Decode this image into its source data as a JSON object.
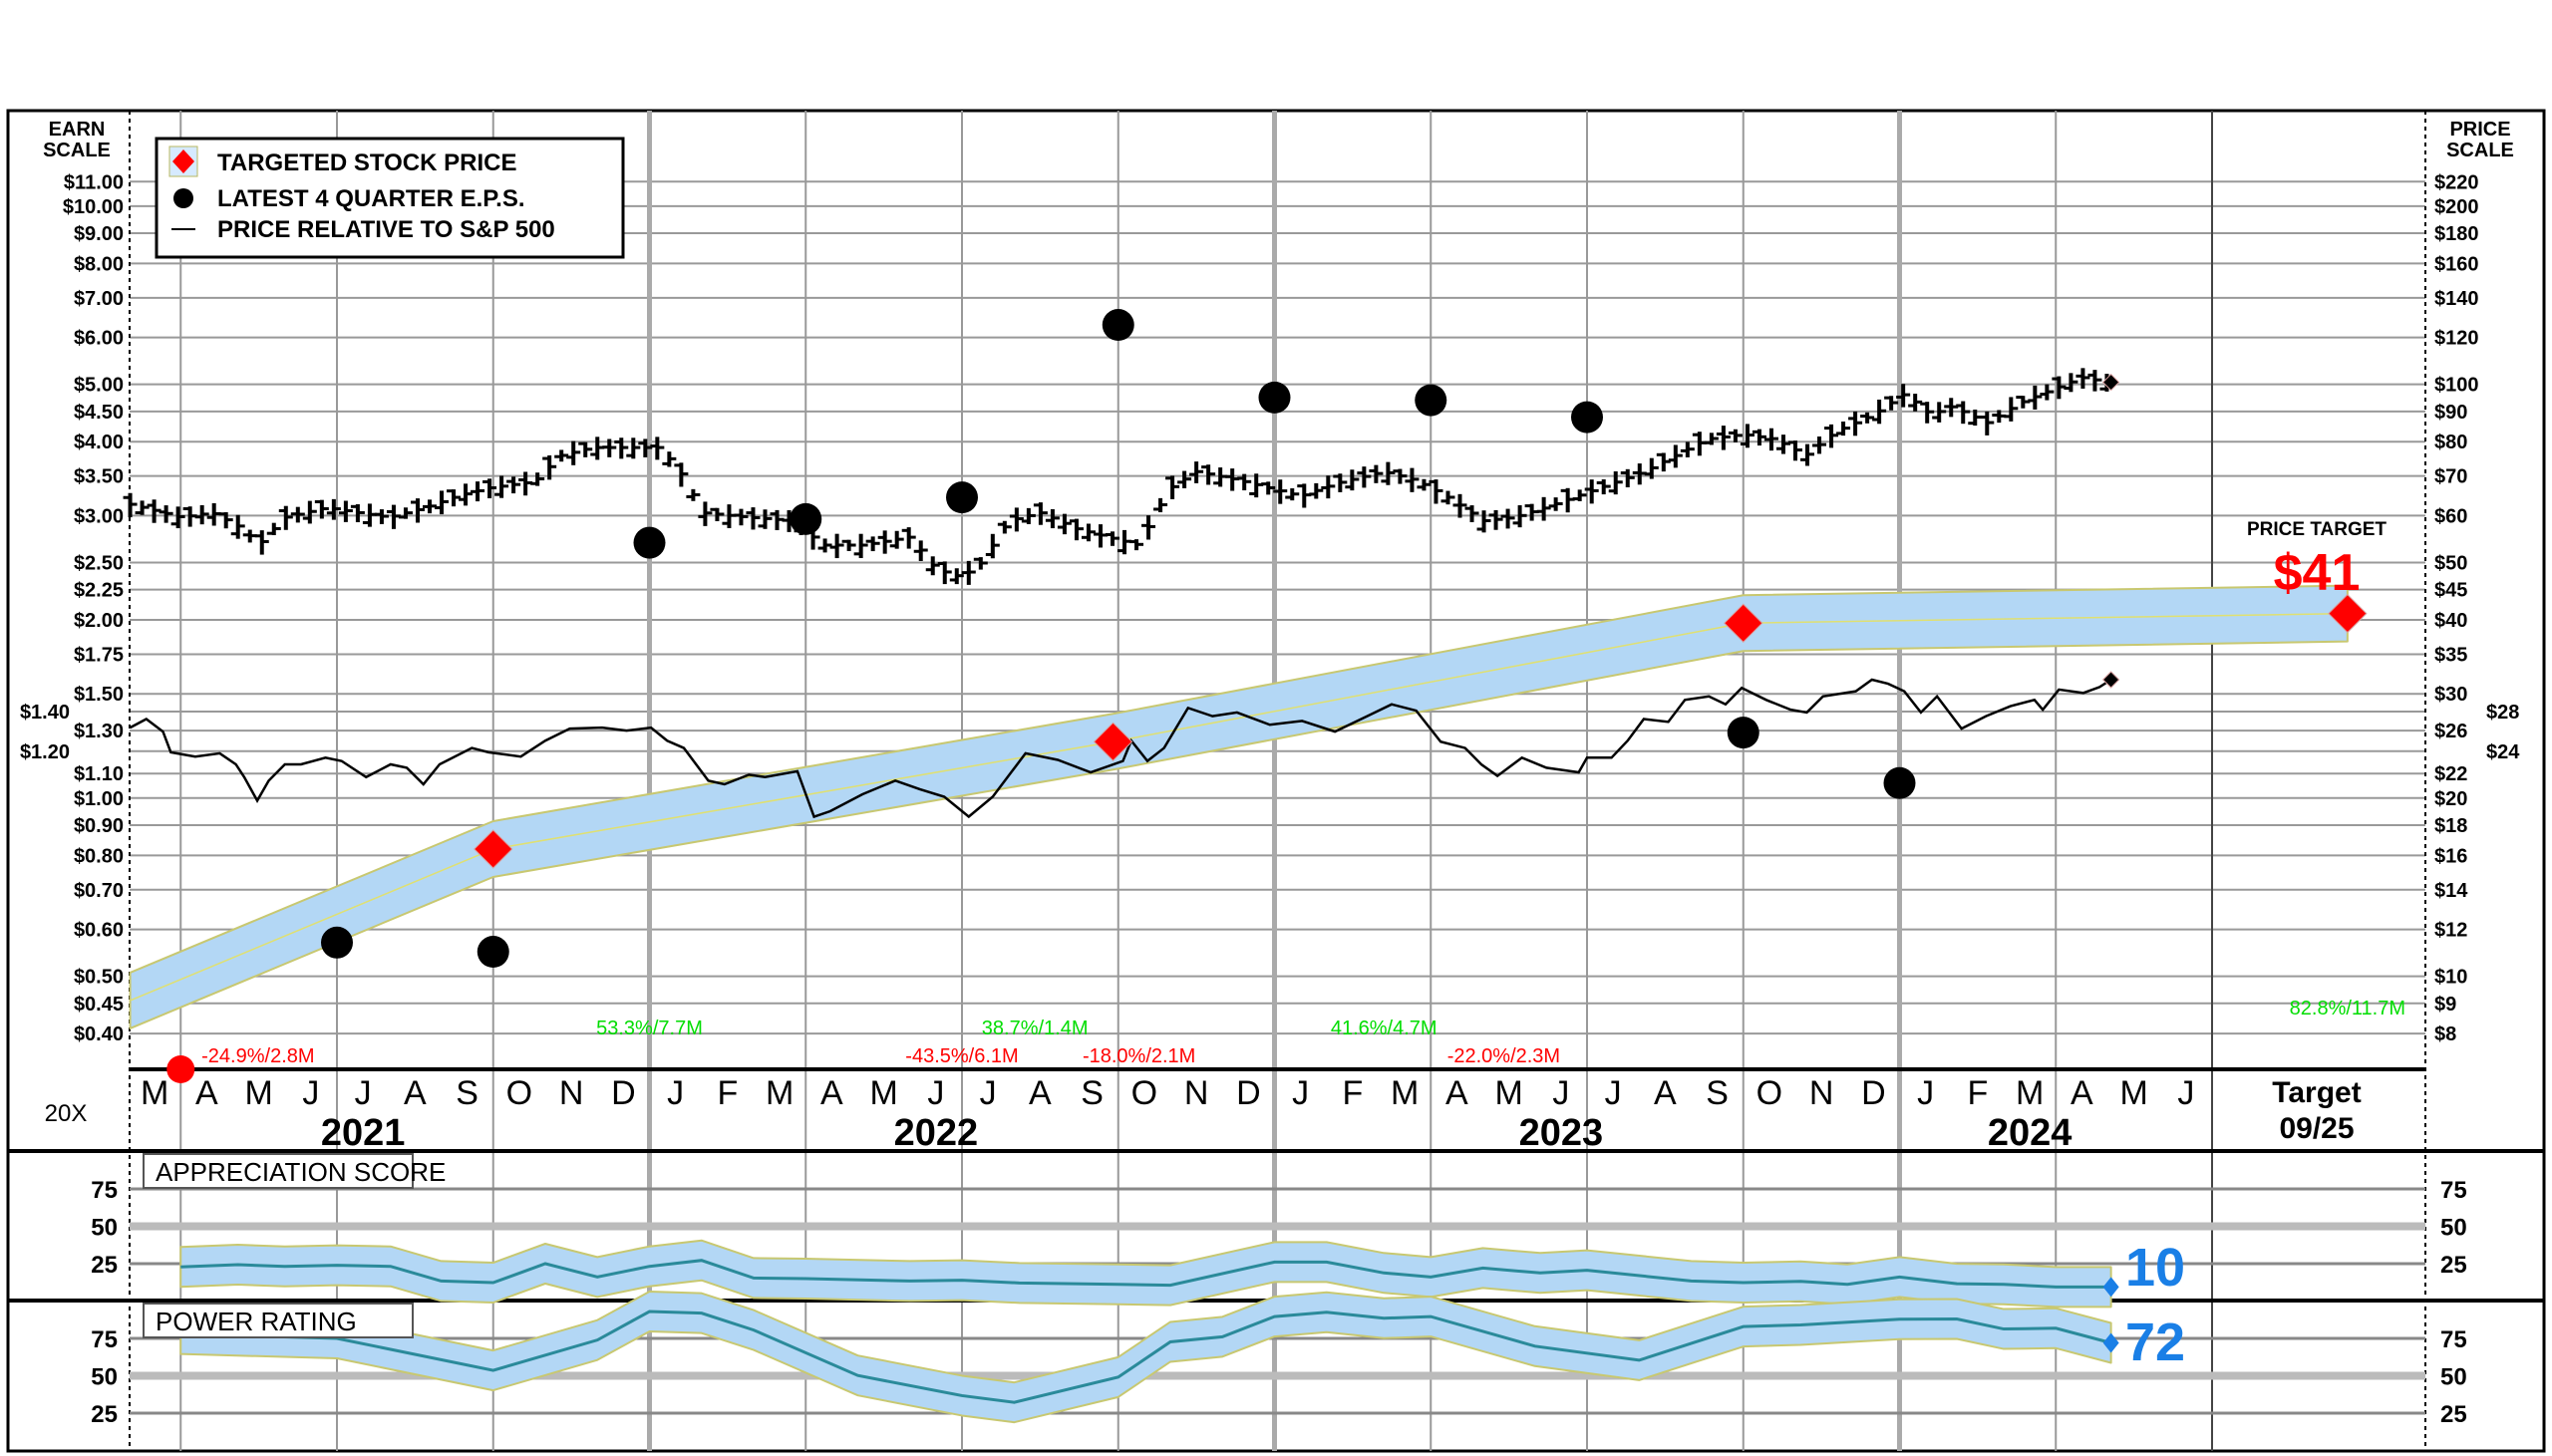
{
  "chart_data": {
    "type": "line",
    "title": "",
    "multiplier_label": "20X",
    "left_axis": {
      "title_line1": "EARN",
      "title_line2": "SCALE",
      "ticks": [
        "$11.00",
        "$10.00",
        "$9.00",
        "$8.00",
        "$7.00",
        "$6.00",
        "$5.00",
        "$4.50",
        "$4.00",
        "$3.50",
        "$3.00",
        "$2.50",
        "$2.25",
        "$2.00",
        "$1.75",
        "$1.50",
        "$1.40",
        "$1.30",
        "$1.20",
        "$1.10",
        "$1.00",
        "$0.90",
        "$0.80",
        "$0.70",
        "$0.60",
        "$0.50",
        "$0.45",
        "$0.40"
      ]
    },
    "right_axis": {
      "title_line1": "PRICE",
      "title_line2": "SCALE",
      "ticks": [
        "$220",
        "$200",
        "$180",
        "$160",
        "$140",
        "$120",
        "$100",
        "$90",
        "$80",
        "$70",
        "$60",
        "$50",
        "$45",
        "$40",
        "$35",
        "$30",
        "$28",
        "$26",
        "$24",
        "$22",
        "$20",
        "$18",
        "$16",
        "$14",
        "$12",
        "$10",
        "$9",
        "$8"
      ],
      "tick_values": [
        220,
        200,
        180,
        160,
        140,
        120,
        100,
        90,
        80,
        70,
        60,
        50,
        45,
        40,
        35,
        30,
        28,
        26,
        24,
        22,
        20,
        18,
        16,
        14,
        12,
        10,
        9,
        8
      ]
    },
    "scale": "log",
    "earn_to_price_multiplier": 20,
    "months": [
      "M",
      "A",
      "M",
      "J",
      "J",
      "A",
      "S",
      "O",
      "N",
      "D",
      "J",
      "F",
      "M",
      "A",
      "M",
      "J",
      "J",
      "A",
      "S",
      "O",
      "N",
      "D",
      "J",
      "F",
      "M",
      "A",
      "M",
      "J",
      "J",
      "A",
      "S",
      "O",
      "N",
      "D",
      "J",
      "F",
      "M",
      "A",
      "M",
      "J"
    ],
    "years": [
      {
        "label": "2021",
        "center_month": 4.5
      },
      {
        "label": "2022",
        "center_month": 15.5
      },
      {
        "label": "2023",
        "center_month": 27.5
      },
      {
        "label": "2024",
        "center_month": 36.5
      }
    ],
    "target_column": {
      "label": "Target",
      "date": "09/25"
    },
    "legend": {
      "placement": "top-left",
      "items": [
        {
          "label": "TARGETED STOCK PRICE",
          "marker": "red-diamond"
        },
        {
          "label": "LATEST 4 QUARTER E.P.S.",
          "marker": "black-circle"
        },
        {
          "label": "PRICE RELATIVE TO S&P 500",
          "marker": "line"
        }
      ]
    },
    "price_closes": [
      [
        0.03,
        62.7
      ],
      [
        1,
        59.6
      ],
      [
        1.6,
        60.7
      ],
      [
        2.2,
        57
      ],
      [
        2.5,
        53.5
      ],
      [
        3,
        59.6
      ],
      [
        3.8,
        61.9
      ],
      [
        4.4,
        60.7
      ],
      [
        5,
        59.6
      ],
      [
        5.7,
        61.9
      ],
      [
        6.3,
        64.7
      ],
      [
        6.9,
        66.8
      ],
      [
        7.8,
        68.5
      ],
      [
        8.3,
        75.8
      ],
      [
        8.9,
        78.2
      ],
      [
        9.7,
        78.2
      ],
      [
        10.2,
        78.2
      ],
      [
        10.7,
        68.9
      ],
      [
        11,
        60.7
      ],
      [
        11.9,
        59.6
      ],
      [
        12.8,
        58.8
      ],
      [
        13.3,
        53.5
      ],
      [
        14.1,
        53.5
      ],
      [
        15,
        55.2
      ],
      [
        15.5,
        48.7
      ],
      [
        16,
        47.2
      ],
      [
        16.4,
        50.2
      ],
      [
        16.9,
        58.8
      ],
      [
        17.5,
        60.7
      ],
      [
        18.2,
        57
      ],
      [
        18.8,
        55.2
      ],
      [
        19.4,
        53.5
      ],
      [
        20,
        66.8
      ],
      [
        20.5,
        71.2
      ],
      [
        21.3,
        68.9
      ],
      [
        21.9,
        66.8
      ],
      [
        22.5,
        64.7
      ],
      [
        23.2,
        68.1
      ],
      [
        24.1,
        71.2
      ],
      [
        24.7,
        68.9
      ],
      [
        25.3,
        64.7
      ],
      [
        26,
        58.8
      ],
      [
        26.6,
        59.6
      ],
      [
        27.2,
        61.9
      ],
      [
        27.8,
        64.7
      ],
      [
        28.5,
        68.1
      ],
      [
        29.1,
        71.2
      ],
      [
        29.7,
        75.8
      ],
      [
        30.3,
        80.8
      ],
      [
        31,
        82.3
      ],
      [
        31.6,
        80.8
      ],
      [
        32.2,
        75.8
      ],
      [
        32.8,
        83.4
      ],
      [
        33.5,
        88.8
      ],
      [
        34.1,
        96.4
      ],
      [
        34.6,
        88.8
      ],
      [
        35,
        91.7
      ],
      [
        35.7,
        86
      ],
      [
        36.3,
        92.9
      ],
      [
        36.9,
        97.7
      ],
      [
        37.5,
        102.7
      ],
      [
        38,
        100.8
      ]
    ],
    "relative_to_sp500": [
      [
        0.03,
        26.3
      ],
      [
        0.34,
        27.2
      ],
      [
        0.66,
        25.9
      ],
      [
        0.81,
        23.9
      ],
      [
        1.28,
        23.5
      ],
      [
        1.75,
        23.8
      ],
      [
        2.06,
        22.8
      ],
      [
        2.22,
        21.7
      ],
      [
        2.47,
        19.8
      ],
      [
        2.69,
        21.4
      ],
      [
        3,
        22.8
      ],
      [
        3.31,
        22.8
      ],
      [
        3.78,
        23.4
      ],
      [
        4.09,
        23.1
      ],
      [
        4.56,
        21.7
      ],
      [
        5.03,
        22.8
      ],
      [
        5.34,
        22.5
      ],
      [
        5.66,
        21.1
      ],
      [
        5.97,
        22.8
      ],
      [
        6.59,
        24.3
      ],
      [
        6.91,
        23.9
      ],
      [
        7.53,
        23.5
      ],
      [
        8,
        25
      ],
      [
        8.47,
        26.2
      ],
      [
        9.09,
        26.3
      ],
      [
        9.56,
        26
      ],
      [
        10.03,
        26.3
      ],
      [
        10.34,
        25
      ],
      [
        10.66,
        24.3
      ],
      [
        11.13,
        21.4
      ],
      [
        11.44,
        21.1
      ],
      [
        11.91,
        21.9
      ],
      [
        12.22,
        21.7
      ],
      [
        12.84,
        22.2
      ],
      [
        13.16,
        18.6
      ],
      [
        13.47,
        19
      ],
      [
        14.09,
        20.3
      ],
      [
        14.72,
        21.4
      ],
      [
        15.19,
        20.7
      ],
      [
        15.66,
        20.1
      ],
      [
        16.13,
        18.6
      ],
      [
        16.59,
        20.1
      ],
      [
        17.22,
        23.8
      ],
      [
        17.84,
        23.2
      ],
      [
        18.47,
        22.1
      ],
      [
        19.09,
        23.1
      ],
      [
        19.25,
        25
      ],
      [
        19.56,
        23.1
      ],
      [
        19.88,
        24.3
      ],
      [
        20.34,
        28.4
      ],
      [
        20.81,
        27.5
      ],
      [
        21.28,
        27.9
      ],
      [
        21.91,
        26.6
      ],
      [
        22.53,
        27
      ],
      [
        23.16,
        25.9
      ],
      [
        23.78,
        27.5
      ],
      [
        24.25,
        28.8
      ],
      [
        24.72,
        28.1
      ],
      [
        25.19,
        24.9
      ],
      [
        25.66,
        24.3
      ],
      [
        25.97,
        22.8
      ],
      [
        26.28,
        21.8
      ],
      [
        26.75,
        23.4
      ],
      [
        27.22,
        22.5
      ],
      [
        27.84,
        22.1
      ],
      [
        28,
        23.4
      ],
      [
        28.47,
        23.4
      ],
      [
        28.78,
        25
      ],
      [
        29.09,
        27.2
      ],
      [
        29.56,
        26.9
      ],
      [
        29.88,
        29.3
      ],
      [
        30.34,
        29.7
      ],
      [
        30.66,
        28.8
      ],
      [
        30.97,
        30.7
      ],
      [
        31.44,
        29.3
      ],
      [
        31.91,
        28.2
      ],
      [
        32.22,
        27.9
      ],
      [
        32.53,
        29.7
      ],
      [
        33.16,
        30.3
      ],
      [
        33.47,
        31.7
      ],
      [
        33.78,
        31.2
      ],
      [
        34.09,
        30.3
      ],
      [
        34.41,
        27.9
      ],
      [
        34.72,
        29.7
      ],
      [
        35.19,
        26.2
      ],
      [
        35.66,
        27.5
      ],
      [
        36.13,
        28.6
      ],
      [
        36.59,
        29.3
      ],
      [
        36.75,
        28.2
      ],
      [
        37.06,
        30.5
      ],
      [
        37.53,
        30.1
      ],
      [
        37.84,
        30.8
      ],
      [
        38.06,
        31.7
      ]
    ],
    "eps": [
      [
        4,
        0.57
      ],
      [
        7,
        0.55
      ],
      [
        10,
        2.7
      ],
      [
        13,
        2.96
      ],
      [
        16,
        3.22
      ],
      [
        19,
        6.3
      ],
      [
        22,
        4.75
      ],
      [
        25,
        4.7
      ],
      [
        28,
        4.4
      ],
      [
        31,
        1.29
      ],
      [
        34,
        1.06
      ]
    ],
    "targeted_price_band": [
      [
        0.03,
        9.1
      ],
      [
        7,
        16.4
      ],
      [
        18.9,
        24.9
      ],
      [
        31,
        39.5
      ],
      [
        42.6,
        41
      ]
    ],
    "targeted_price_diamonds": [
      [
        7,
        16.4
      ],
      [
        18.9,
        24.9
      ],
      [
        31,
        39.5
      ]
    ],
    "price_target": {
      "label": "PRICE TARGET",
      "value_label": "$41",
      "value": 41
    },
    "latest_price": 100.8,
    "latest_relative": 31.7,
    "start_marker": {
      "month": 1,
      "value": 7.6
    },
    "volume_annotations": [
      {
        "text": "-24.9%/2.8M",
        "month": 1.4,
        "color": "#ff0000",
        "row": "low"
      },
      {
        "text": "53.3%/7.7M",
        "month": 10,
        "color": "#00dd00",
        "row": "high"
      },
      {
        "text": "-43.5%/6.1M",
        "month": 16,
        "color": "#ff0000",
        "row": "low"
      },
      {
        "text": "38.7%/1.4M",
        "month": 17.4,
        "color": "#00dd00",
        "row": "high"
      },
      {
        "text": "-18.0%/2.1M",
        "month": 19.4,
        "color": "#ff0000",
        "row": "low"
      },
      {
        "text": "41.6%/4.7M",
        "month": 24.1,
        "color": "#00dd00",
        "row": "high"
      },
      {
        "text": "-22.0%/2.3M",
        "month": 26.4,
        "color": "#ff0000",
        "row": "low"
      },
      {
        "text": "82.8%/11.7M",
        "month": 42.6,
        "color": "#00dd00",
        "row": "top"
      }
    ],
    "appreciation_score": {
      "label": "APPRECIATION SCORE",
      "ticks": [
        "75",
        "50",
        "25"
      ],
      "tick_values": [
        75,
        50,
        25
      ],
      "final_label": "10",
      "points": [
        [
          1,
          22.8
        ],
        [
          2.1,
          24.3
        ],
        [
          3,
          23.2
        ],
        [
          4,
          23.9
        ],
        [
          5.03,
          23.2
        ],
        [
          6,
          13.4
        ],
        [
          7,
          12.3
        ],
        [
          8,
          25
        ],
        [
          9,
          16.1
        ],
        [
          10,
          23.2
        ],
        [
          11,
          27.2
        ],
        [
          12,
          15.4
        ],
        [
          13,
          15
        ],
        [
          15,
          13.4
        ],
        [
          16,
          13.9
        ],
        [
          17.1,
          12.1
        ],
        [
          19,
          11.2
        ],
        [
          20,
          10.6
        ],
        [
          22,
          26.1
        ],
        [
          23,
          26.1
        ],
        [
          24.1,
          18.8
        ],
        [
          25,
          16.1
        ],
        [
          26,
          22.1
        ],
        [
          27.1,
          18.8
        ],
        [
          28,
          20.6
        ],
        [
          30,
          13.4
        ],
        [
          31,
          12.3
        ],
        [
          32.1,
          13.2
        ],
        [
          33,
          11.2
        ],
        [
          34,
          16.1
        ],
        [
          35.1,
          11.6
        ],
        [
          36,
          11.2
        ],
        [
          37,
          9.4
        ],
        [
          38.06,
          9.4
        ]
      ]
    },
    "power_rating": {
      "label": "POWER RATING",
      "ticks": [
        "75",
        "50",
        "25"
      ],
      "tick_values": [
        75,
        50,
        25
      ],
      "final_label": "72",
      "points": [
        [
          1,
          77.9
        ],
        [
          4,
          75
        ],
        [
          7,
          53.6
        ],
        [
          9,
          73.9
        ],
        [
          10,
          93
        ],
        [
          11,
          91.9
        ],
        [
          12,
          80.6
        ],
        [
          14,
          50.2
        ],
        [
          16,
          36.7
        ],
        [
          17,
          32.2
        ],
        [
          19,
          49.1
        ],
        [
          20,
          72.7
        ],
        [
          21,
          76.1
        ],
        [
          22,
          89.6
        ],
        [
          23,
          92.5
        ],
        [
          24.1,
          88.5
        ],
        [
          25,
          89.6
        ],
        [
          27,
          69.8
        ],
        [
          29,
          60.4
        ],
        [
          31,
          82.9
        ],
        [
          32.1,
          84
        ],
        [
          34,
          87.8
        ],
        [
          35.1,
          88
        ],
        [
          36,
          81.3
        ],
        [
          37,
          81.8
        ],
        [
          38.06,
          72
        ]
      ]
    }
  }
}
